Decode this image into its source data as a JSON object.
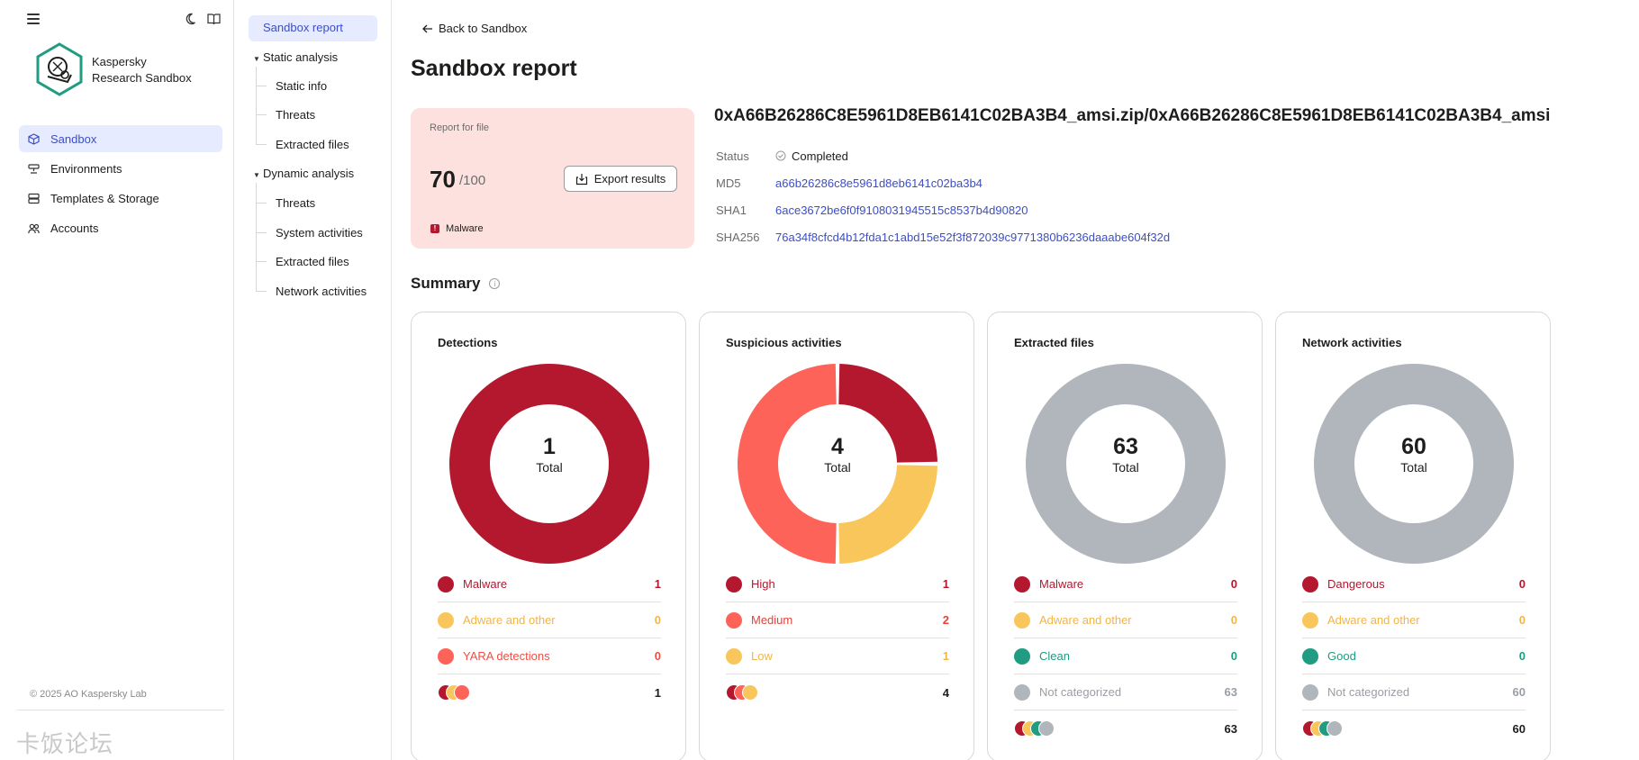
{
  "brand": {
    "line1": "Kaspersky",
    "line2": "Research Sandbox"
  },
  "nav": [
    {
      "label": "Sandbox",
      "icon": "cube-icon",
      "active": true
    },
    {
      "label": "Environments",
      "icon": "environments-icon",
      "active": false
    },
    {
      "label": "Templates & Storage",
      "icon": "storage-icon",
      "active": false
    },
    {
      "label": "Accounts",
      "icon": "accounts-icon",
      "active": false
    }
  ],
  "copyright": "© 2025 AO Kaspersky Lab",
  "watermark": "卡饭论坛",
  "subnav": {
    "active": "Sandbox report",
    "static_analysis": "Static analysis",
    "static_items": [
      "Static info",
      "Threats",
      "Extracted files"
    ],
    "dynamic_analysis": "Dynamic analysis",
    "dynamic_items": [
      "Threats",
      "System activities",
      "Extracted files",
      "Network activities"
    ]
  },
  "back_link": "Back to Sandbox",
  "page_title": "Sandbox report",
  "report": {
    "label": "Report for file",
    "score": "70",
    "score_max": "/100",
    "export_label": "Export results",
    "verdict": "Malware",
    "verdict_mark": "!"
  },
  "file_name": "0xA66B26286C8E5961D8EB6141C02BA3B4_amsi.zip/0xA66B26286C8E5961D8EB6141C02BA3B4_amsi",
  "meta": {
    "status_key": "Status",
    "status_val": "Completed",
    "md5_key": "MD5",
    "md5_val": "a66b26286c8e5961d8eb6141c02ba3b4",
    "sha1_key": "SHA1",
    "sha1_val": "6ace3672be6f0f9108031945515c8537b4d90820",
    "sha256_key": "SHA256",
    "sha256_val": "76a34f8cfcd4b12fda1c1abd15e52f3f872039c9771380b6236daaabe604f32d"
  },
  "summary_title": "Summary",
  "summary_info": "i",
  "colors": {
    "red": "#b3182f",
    "yellow": "#f9c65b",
    "salmon": "#fd6359",
    "green": "#1f9c81",
    "gray": "#b1b6bc",
    "accent": "#3c4ec8"
  },
  "cards": [
    {
      "title": "Detections",
      "total": "1",
      "total_label": "Total",
      "rows": [
        {
          "label": "Malware",
          "count": "1",
          "color": "#b3182f",
          "text": "#b3182f"
        },
        {
          "label": "Adware and other",
          "count": "0",
          "color": "#f9c65b",
          "text": "#f0b548"
        },
        {
          "label": "YARA detections",
          "count": "0",
          "color": "#fd6359",
          "text": "#f04e45"
        }
      ],
      "mini": [
        "#b3182f",
        "#f9c65b",
        "#fd6359"
      ],
      "sum": "1",
      "slices": [
        {
          "value": 1,
          "color": "#b3182f"
        }
      ]
    },
    {
      "title": "Suspicious activities",
      "total": "4",
      "total_label": "Total",
      "rows": [
        {
          "label": "High",
          "count": "1",
          "color": "#b3182f",
          "text": "#b3182f"
        },
        {
          "label": "Medium",
          "count": "2",
          "color": "#fd6359",
          "text": "#e0443c"
        },
        {
          "label": "Low",
          "count": "1",
          "color": "#f9c65b",
          "text": "#f0b548"
        }
      ],
      "mini": [
        "#b3182f",
        "#fd6359",
        "#f9c65b"
      ],
      "sum": "4",
      "slices": [
        {
          "value": 1,
          "color": "#b3182f"
        },
        {
          "value": 1,
          "color": "#f9c65b"
        },
        {
          "value": 2,
          "color": "#fd6359"
        }
      ]
    },
    {
      "title": "Extracted files",
      "total": "63",
      "total_label": "Total",
      "rows": [
        {
          "label": "Malware",
          "count": "0",
          "color": "#b3182f",
          "text": "#b3182f"
        },
        {
          "label": "Adware and other",
          "count": "0",
          "color": "#f9c65b",
          "text": "#f0b548"
        },
        {
          "label": "Clean",
          "count": "0",
          "color": "#1f9c81",
          "text": "#1f9c81"
        },
        {
          "label": "Not categorized",
          "count": "63",
          "color": "#b1b6bc",
          "text": "#9a9ea4"
        }
      ],
      "mini": [
        "#b3182f",
        "#f9c65b",
        "#1f9c81",
        "#b1b6bc"
      ],
      "sum": "63",
      "slices": [
        {
          "value": 63,
          "color": "#b1b6bc"
        }
      ]
    },
    {
      "title": "Network activities",
      "total": "60",
      "total_label": "Total",
      "rows": [
        {
          "label": "Dangerous",
          "count": "0",
          "color": "#b3182f",
          "text": "#b3182f"
        },
        {
          "label": "Adware and other",
          "count": "0",
          "color": "#f9c65b",
          "text": "#f0b548"
        },
        {
          "label": "Good",
          "count": "0",
          "color": "#1f9c81",
          "text": "#1f9c81"
        },
        {
          "label": "Not categorized",
          "count": "60",
          "color": "#b1b6bc",
          "text": "#9a9ea4"
        }
      ],
      "mini": [
        "#b3182f",
        "#f9c65b",
        "#1f9c81",
        "#b1b6bc"
      ],
      "sum": "60",
      "slices": [
        {
          "value": 60,
          "color": "#b1b6bc"
        }
      ]
    }
  ]
}
